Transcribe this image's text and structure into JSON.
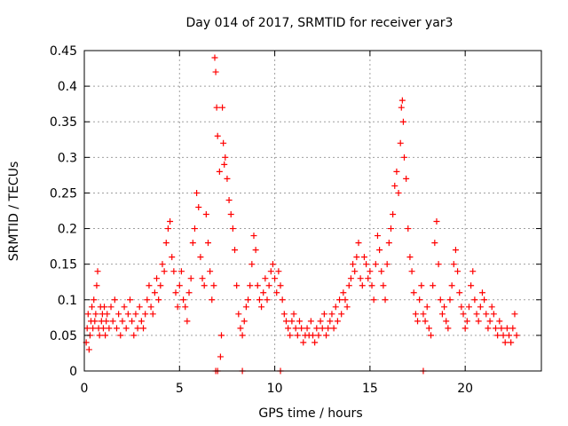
{
  "chart_data": {
    "type": "scatter",
    "title": "Day 014 of 2017, SRMTID for receiver yar3",
    "xlabel": "GPS time / hours",
    "ylabel": "SRMTID / TECUs",
    "xlim": [
      0,
      24.0
    ],
    "ylim": [
      0,
      0.45
    ],
    "xticks": [
      0,
      5,
      10,
      15,
      20
    ],
    "xtick_labels": [
      "0",
      "5",
      "10",
      "15",
      "20"
    ],
    "yticks": [
      0,
      0.05,
      0.1,
      0.15,
      0.2,
      0.25,
      0.3,
      0.35,
      0.4,
      0.45
    ],
    "ytick_labels": [
      "0",
      "0.05",
      "0.1",
      "0.15",
      "0.2",
      "0.25",
      "0.3",
      "0.35",
      "0.4",
      "0.45"
    ],
    "grid": true,
    "marker": "+",
    "color": "#ff0000",
    "series": [
      {
        "name": "SRMTID",
        "points": [
          [
            0.1,
            0.04
          ],
          [
            0.15,
            0.06
          ],
          [
            0.2,
            0.08
          ],
          [
            0.25,
            0.03
          ],
          [
            0.3,
            0.05
          ],
          [
            0.35,
            0.07
          ],
          [
            0.4,
            0.09
          ],
          [
            0.45,
            0.06
          ],
          [
            0.5,
            0.1
          ],
          [
            0.55,
            0.07
          ],
          [
            0.6,
            0.08
          ],
          [
            0.65,
            0.12
          ],
          [
            0.7,
            0.14
          ],
          [
            0.75,
            0.06
          ],
          [
            0.8,
            0.05
          ],
          [
            0.85,
            0.09
          ],
          [
            0.9,
            0.07
          ],
          [
            0.95,
            0.08
          ],
          [
            1.0,
            0.06
          ],
          [
            1.05,
            0.09
          ],
          [
            1.1,
            0.05
          ],
          [
            1.15,
            0.07
          ],
          [
            1.2,
            0.08
          ],
          [
            1.3,
            0.06
          ],
          [
            1.4,
            0.09
          ],
          [
            1.5,
            0.07
          ],
          [
            1.6,
            0.1
          ],
          [
            1.7,
            0.06
          ],
          [
            1.8,
            0.08
          ],
          [
            1.9,
            0.05
          ],
          [
            2.0,
            0.07
          ],
          [
            2.1,
            0.09
          ],
          [
            2.2,
            0.06
          ],
          [
            2.3,
            0.08
          ],
          [
            2.4,
            0.1
          ],
          [
            2.5,
            0.07
          ],
          [
            2.6,
            0.05
          ],
          [
            2.7,
            0.08
          ],
          [
            2.8,
            0.06
          ],
          [
            2.9,
            0.09
          ],
          [
            3.0,
            0.07
          ],
          [
            3.1,
            0.06
          ],
          [
            3.2,
            0.08
          ],
          [
            3.3,
            0.1
          ],
          [
            3.4,
            0.12
          ],
          [
            3.5,
            0.09
          ],
          [
            3.6,
            0.08
          ],
          [
            3.7,
            0.11
          ],
          [
            3.8,
            0.13
          ],
          [
            3.9,
            0.1
          ],
          [
            4.0,
            0.12
          ],
          [
            4.1,
            0.15
          ],
          [
            4.2,
            0.14
          ],
          [
            4.3,
            0.18
          ],
          [
            4.4,
            0.2
          ],
          [
            4.5,
            0.21
          ],
          [
            4.6,
            0.16
          ],
          [
            4.7,
            0.14
          ],
          [
            4.8,
            0.11
          ],
          [
            4.9,
            0.09
          ],
          [
            5.0,
            0.12
          ],
          [
            5.1,
            0.14
          ],
          [
            5.2,
            0.1
          ],
          [
            5.3,
            0.09
          ],
          [
            5.4,
            0.07
          ],
          [
            5.5,
            0.11
          ],
          [
            5.6,
            0.13
          ],
          [
            5.7,
            0.18
          ],
          [
            5.8,
            0.2
          ],
          [
            5.9,
            0.25
          ],
          [
            6.0,
            0.23
          ],
          [
            6.1,
            0.16
          ],
          [
            6.2,
            0.13
          ],
          [
            6.3,
            0.12
          ],
          [
            6.4,
            0.22
          ],
          [
            6.5,
            0.18
          ],
          [
            6.6,
            0.14
          ],
          [
            6.7,
            0.1
          ],
          [
            6.8,
            0.12
          ],
          [
            6.85,
            0.44
          ],
          [
            6.9,
            0.42
          ],
          [
            6.95,
            0.37
          ],
          [
            7.0,
            0.33
          ],
          [
            7.1,
            0.28
          ],
          [
            7.15,
            0.02
          ],
          [
            7.2,
            0.05
          ],
          [
            7.25,
            0.37
          ],
          [
            7.3,
            0.32
          ],
          [
            7.35,
            0.29
          ],
          [
            7.4,
            0.3
          ],
          [
            7.5,
            0.27
          ],
          [
            7.6,
            0.24
          ],
          [
            7.7,
            0.22
          ],
          [
            7.8,
            0.2
          ],
          [
            7.9,
            0.17
          ],
          [
            8.0,
            0.12
          ],
          [
            8.1,
            0.08
          ],
          [
            8.2,
            0.06
          ],
          [
            8.3,
            0.05
          ],
          [
            8.4,
            0.07
          ],
          [
            8.5,
            0.09
          ],
          [
            8.6,
            0.1
          ],
          [
            8.7,
            0.12
          ],
          [
            8.8,
            0.15
          ],
          [
            8.9,
            0.19
          ],
          [
            9.0,
            0.17
          ],
          [
            9.1,
            0.12
          ],
          [
            9.2,
            0.1
          ],
          [
            9.3,
            0.09
          ],
          [
            9.4,
            0.11
          ],
          [
            9.5,
            0.13
          ],
          [
            9.6,
            0.1
          ],
          [
            9.7,
            0.12
          ],
          [
            9.8,
            0.14
          ],
          [
            9.9,
            0.15
          ],
          [
            10.0,
            0.13
          ],
          [
            10.1,
            0.11
          ],
          [
            10.2,
            0.14
          ],
          [
            10.3,
            0.12
          ],
          [
            10.4,
            0.1
          ],
          [
            10.5,
            0.08
          ],
          [
            10.6,
            0.07
          ],
          [
            10.7,
            0.06
          ],
          [
            10.8,
            0.05
          ],
          [
            10.9,
            0.07
          ],
          [
            11.0,
            0.08
          ],
          [
            11.1,
            0.06
          ],
          [
            11.2,
            0.05
          ],
          [
            11.3,
            0.07
          ],
          [
            11.4,
            0.06
          ],
          [
            11.5,
            0.04
          ],
          [
            11.6,
            0.05
          ],
          [
            11.7,
            0.06
          ],
          [
            11.8,
            0.05
          ],
          [
            11.9,
            0.07
          ],
          [
            12.0,
            0.05
          ],
          [
            12.1,
            0.04
          ],
          [
            12.2,
            0.06
          ],
          [
            12.3,
            0.05
          ],
          [
            12.4,
            0.07
          ],
          [
            12.5,
            0.06
          ],
          [
            12.6,
            0.08
          ],
          [
            12.7,
            0.05
          ],
          [
            12.8,
            0.06
          ],
          [
            12.9,
            0.07
          ],
          [
            13.0,
            0.08
          ],
          [
            13.1,
            0.06
          ],
          [
            13.2,
            0.09
          ],
          [
            13.3,
            0.07
          ],
          [
            13.4,
            0.1
          ],
          [
            13.5,
            0.08
          ],
          [
            13.6,
            0.11
          ],
          [
            13.7,
            0.1
          ],
          [
            13.8,
            0.09
          ],
          [
            13.9,
            0.12
          ],
          [
            14.0,
            0.13
          ],
          [
            14.1,
            0.15
          ],
          [
            14.2,
            0.14
          ],
          [
            14.3,
            0.16
          ],
          [
            14.4,
            0.18
          ],
          [
            14.5,
            0.13
          ],
          [
            14.6,
            0.12
          ],
          [
            14.7,
            0.16
          ],
          [
            14.8,
            0.15
          ],
          [
            14.9,
            0.13
          ],
          [
            15.0,
            0.14
          ],
          [
            15.1,
            0.12
          ],
          [
            15.2,
            0.1
          ],
          [
            15.3,
            0.15
          ],
          [
            15.4,
            0.19
          ],
          [
            15.5,
            0.17
          ],
          [
            15.6,
            0.14
          ],
          [
            15.7,
            0.12
          ],
          [
            15.8,
            0.1
          ],
          [
            15.9,
            0.15
          ],
          [
            16.0,
            0.18
          ],
          [
            16.1,
            0.2
          ],
          [
            16.2,
            0.22
          ],
          [
            16.3,
            0.26
          ],
          [
            16.4,
            0.28
          ],
          [
            16.5,
            0.25
          ],
          [
            16.6,
            0.32
          ],
          [
            16.65,
            0.37
          ],
          [
            16.7,
            0.38
          ],
          [
            16.75,
            0.35
          ],
          [
            16.8,
            0.3
          ],
          [
            16.9,
            0.27
          ],
          [
            17.0,
            0.2
          ],
          [
            17.1,
            0.16
          ],
          [
            17.2,
            0.14
          ],
          [
            17.3,
            0.11
          ],
          [
            17.4,
            0.08
          ],
          [
            17.5,
            0.07
          ],
          [
            17.6,
            0.1
          ],
          [
            17.7,
            0.12
          ],
          [
            17.8,
            0.08
          ],
          [
            17.9,
            0.07
          ],
          [
            18.0,
            0.09
          ],
          [
            18.1,
            0.06
          ],
          [
            18.2,
            0.05
          ],
          [
            18.3,
            0.12
          ],
          [
            18.4,
            0.18
          ],
          [
            18.5,
            0.21
          ],
          [
            18.6,
            0.15
          ],
          [
            18.7,
            0.1
          ],
          [
            18.8,
            0.08
          ],
          [
            18.9,
            0.09
          ],
          [
            19.0,
            0.07
          ],
          [
            19.1,
            0.06
          ],
          [
            19.2,
            0.1
          ],
          [
            19.3,
            0.12
          ],
          [
            19.4,
            0.15
          ],
          [
            19.5,
            0.17
          ],
          [
            19.6,
            0.14
          ],
          [
            19.7,
            0.11
          ],
          [
            19.8,
            0.09
          ],
          [
            19.9,
            0.08
          ],
          [
            20.0,
            0.06
          ],
          [
            20.1,
            0.07
          ],
          [
            20.2,
            0.09
          ],
          [
            20.3,
            0.12
          ],
          [
            20.4,
            0.14
          ],
          [
            20.5,
            0.1
          ],
          [
            20.6,
            0.08
          ],
          [
            20.7,
            0.07
          ],
          [
            20.8,
            0.09
          ],
          [
            20.9,
            0.11
          ],
          [
            21.0,
            0.1
          ],
          [
            21.1,
            0.08
          ],
          [
            21.2,
            0.06
          ],
          [
            21.3,
            0.07
          ],
          [
            21.4,
            0.09
          ],
          [
            21.5,
            0.08
          ],
          [
            21.6,
            0.06
          ],
          [
            21.7,
            0.05
          ],
          [
            21.8,
            0.07
          ],
          [
            21.9,
            0.06
          ],
          [
            22.0,
            0.05
          ],
          [
            22.1,
            0.04
          ],
          [
            22.2,
            0.06
          ],
          [
            22.3,
            0.05
          ],
          [
            22.4,
            0.04
          ],
          [
            22.5,
            0.06
          ],
          [
            22.6,
            0.08
          ],
          [
            22.7,
            0.05
          ],
          [
            6.9,
            0.0
          ],
          [
            7.0,
            0.0
          ],
          [
            8.3,
            0.0
          ],
          [
            10.3,
            0.0
          ],
          [
            17.8,
            0.0
          ]
        ]
      }
    ]
  }
}
